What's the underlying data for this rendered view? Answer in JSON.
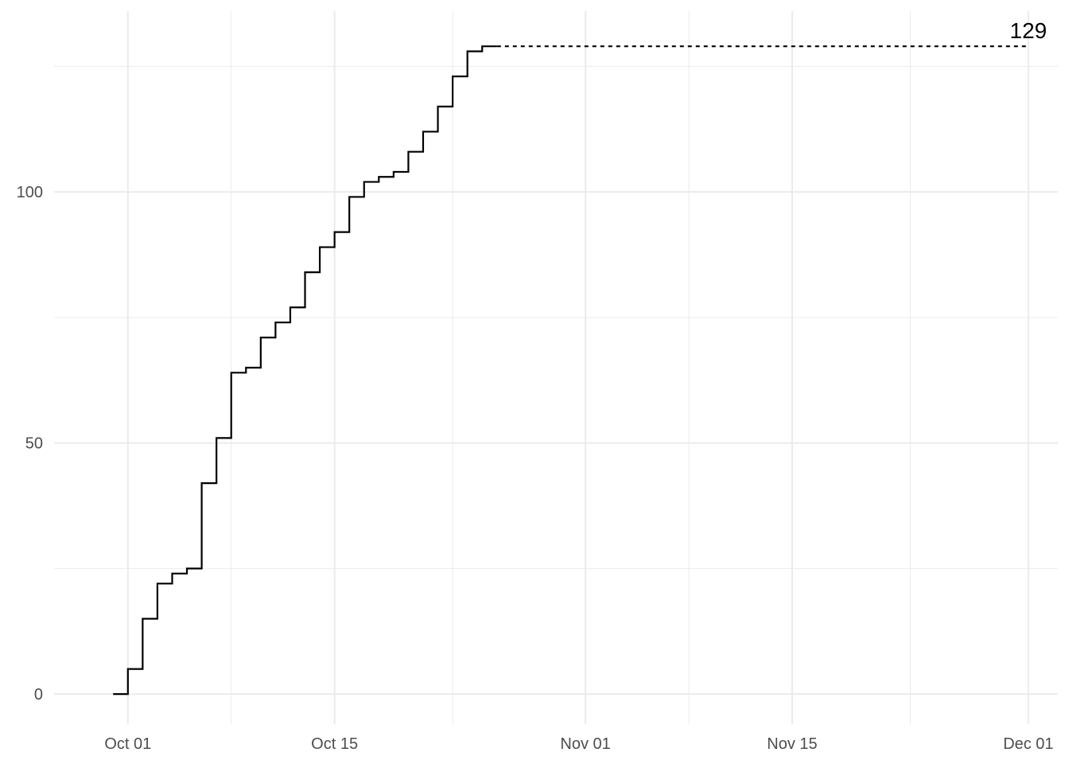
{
  "chart_data": {
    "type": "line",
    "style": "step",
    "title": "",
    "xlabel": "",
    "ylabel": "",
    "x_axis": {
      "type": "date",
      "range": [
        "2023-09-26",
        "2023-12-03"
      ],
      "major_ticks": [
        "2023-10-01",
        "2023-10-15",
        "2023-11-01",
        "2023-11-15",
        "2023-12-01"
      ],
      "minor_ticks": [
        "2023-10-08",
        "2023-10-23",
        "2023-11-08",
        "2023-11-23"
      ],
      "tick_labels": [
        "Oct 01",
        "Oct 15",
        "Nov 01",
        "Nov 15",
        "Dec 01"
      ]
    },
    "y_axis": {
      "range": [
        -6,
        136
      ],
      "major_ticks": [
        0,
        50,
        100
      ],
      "minor_ticks": [
        25,
        75,
        125
      ],
      "tick_labels": [
        "0",
        "50",
        "100"
      ]
    },
    "grid": true,
    "series": [
      {
        "points": [
          {
            "x": "2023-09-30",
            "y": 0
          },
          {
            "x": "2023-10-01",
            "y": 5
          },
          {
            "x": "2023-10-02",
            "y": 15
          },
          {
            "x": "2023-10-03",
            "y": 22
          },
          {
            "x": "2023-10-04",
            "y": 24
          },
          {
            "x": "2023-10-05",
            "y": 25
          },
          {
            "x": "2023-10-06",
            "y": 42
          },
          {
            "x": "2023-10-07",
            "y": 51
          },
          {
            "x": "2023-10-08",
            "y": 64
          },
          {
            "x": "2023-10-09",
            "y": 65
          },
          {
            "x": "2023-10-10",
            "y": 71
          },
          {
            "x": "2023-10-11",
            "y": 74
          },
          {
            "x": "2023-10-12",
            "y": 77
          },
          {
            "x": "2023-10-13",
            "y": 84
          },
          {
            "x": "2023-10-14",
            "y": 89
          },
          {
            "x": "2023-10-15",
            "y": 92
          },
          {
            "x": "2023-10-16",
            "y": 99
          },
          {
            "x": "2023-10-17",
            "y": 102
          },
          {
            "x": "2023-10-18",
            "y": 103
          },
          {
            "x": "2023-10-19",
            "y": 104
          },
          {
            "x": "2023-10-20",
            "y": 108
          },
          {
            "x": "2023-10-21",
            "y": 112
          },
          {
            "x": "2023-10-22",
            "y": 117
          },
          {
            "x": "2023-10-23",
            "y": 123
          },
          {
            "x": "2023-10-24",
            "y": 128
          },
          {
            "x": "2023-10-25",
            "y": 129
          }
        ],
        "color": "#000000"
      }
    ],
    "reference_line": {
      "y": 129,
      "x_start": "2023-10-26",
      "x_end": "2023-12-01",
      "style": "dashed",
      "color": "#000000"
    },
    "annotation": {
      "text": "129",
      "x": "2023-12-01",
      "y": 129
    }
  }
}
